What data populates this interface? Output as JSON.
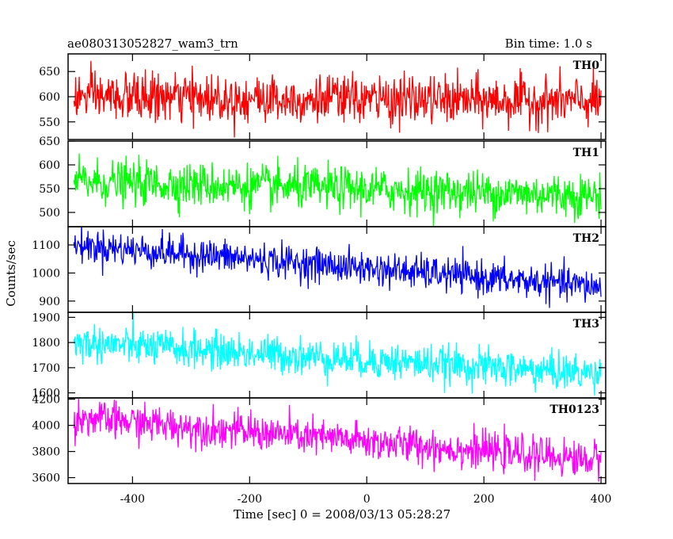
{
  "chart_data": {
    "type": "line",
    "title": "ae080313052827_wam3_trn",
    "subtitle": "Bin time: 1.0 s",
    "xlabel": "Time [sec] 0 = 2008/03/13 05:28:27",
    "ylabel": "Counts/sec",
    "xlim": [
      -510,
      408
    ],
    "x_ticks": [
      -400,
      -200,
      0,
      200,
      400
    ],
    "x": {
      "start": -500,
      "end": 400,
      "step": 1
    },
    "panels": [
      {
        "name": "TH0",
        "color": "#ff0000",
        "ylim": [
          515,
          685
        ],
        "y_ticks": [
          550,
          600,
          650
        ],
        "trend": {
          "start": 600,
          "end": 590
        },
        "noise_sigma": 24
      },
      {
        "name": "TH1",
        "color": "#00ff00",
        "ylim": [
          470,
          650
        ],
        "y_ticks": [
          500,
          550,
          600,
          650
        ],
        "trend": {
          "start": 565,
          "end": 535
        },
        "noise_sigma": 23
      },
      {
        "name": "TH2",
        "color": "#0000ff",
        "ylim": [
          860,
          1165
        ],
        "y_ticks": [
          900,
          1000,
          1100
        ],
        "trend": {
          "start": 1100,
          "end": 950
        },
        "noise_sigma": 30
      },
      {
        "name": "TH3",
        "color": "#00ffff",
        "ylim": [
          1580,
          1920
        ],
        "y_ticks": [
          1600,
          1700,
          1800,
          1900
        ],
        "trend": {
          "start": 1800,
          "end": 1675
        },
        "noise_sigma": 37
      },
      {
        "name": "TH0123",
        "color": "#ff00ff",
        "ylim": [
          3555,
          4210
        ],
        "y_ticks": [
          3600,
          3800,
          4000,
          4200
        ],
        "trend": {
          "start": 4060,
          "end": 3730
        },
        "noise_sigma": 70
      }
    ]
  }
}
